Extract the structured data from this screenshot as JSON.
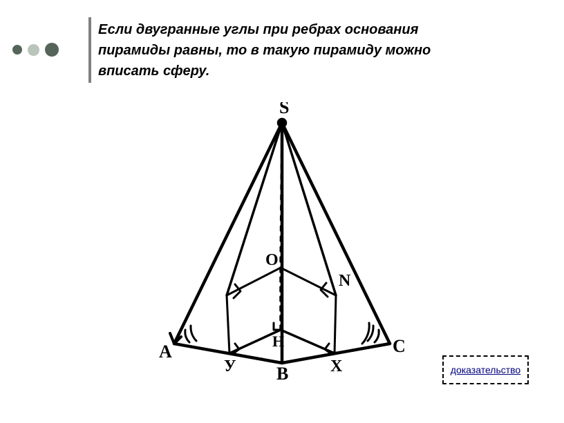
{
  "colors": {
    "bullet_dark": "#56655a",
    "bullet_light": "#b9c4bb",
    "vbar": "#808080",
    "text": "#000000",
    "link": "#000080",
    "proof_bg": "#ffffff",
    "diagram_stroke": "#000000"
  },
  "bullets": {
    "sizes": [
      14,
      17,
      20
    ]
  },
  "theorem": {
    "text": "Если двугранные углы при ребрах основания пирамиды равны, то в такую пирамиду можно вписать сферу.",
    "fontsize": 20
  },
  "proof_button": {
    "label": "доказательство"
  },
  "diagram": {
    "labels": {
      "S": "S",
      "A": "A",
      "B": "B",
      "C": "C",
      "O": "O",
      "N": "N",
      "H": "H",
      "X": "X",
      "Y": "У"
    },
    "fontsize": 24,
    "label_fontsize_small": 22
  }
}
